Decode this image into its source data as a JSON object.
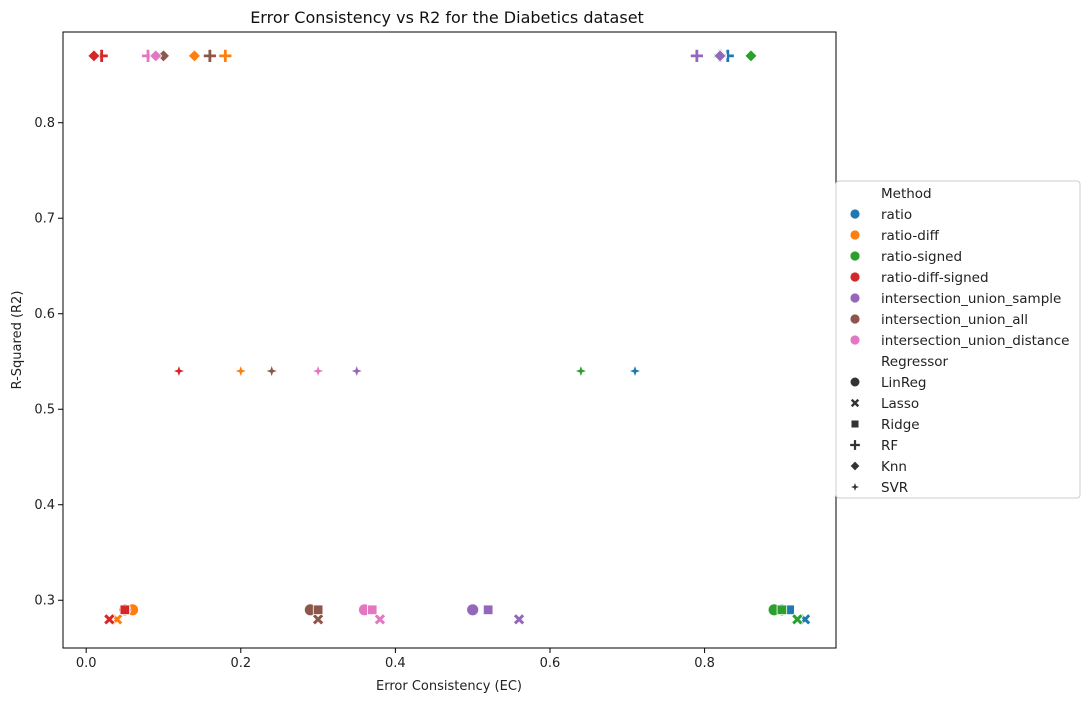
{
  "chart_data": {
    "type": "scatter",
    "title": "Error Consistency vs R2 for the Diabetics dataset",
    "xlabel": "Error Consistency (EC)",
    "ylabel": "R-Squared (R2)",
    "xlim": [
      -0.03,
      0.97
    ],
    "ylim": [
      0.25,
      0.895
    ],
    "xticks": [
      "0.0",
      "0.2",
      "0.4",
      "0.6",
      "0.8"
    ],
    "yticks": [
      "0.3",
      "0.4",
      "0.5",
      "0.6",
      "0.7",
      "0.8"
    ],
    "legend_placement": "center-right outside",
    "grid": false,
    "legend": {
      "method_title": "Method",
      "methods": [
        {
          "name": "ratio",
          "color": "#1f77b4"
        },
        {
          "name": "ratio-diff",
          "color": "#ff7f0e"
        },
        {
          "name": "ratio-signed",
          "color": "#2ca02c"
        },
        {
          "name": "ratio-diff-signed",
          "color": "#d62728"
        },
        {
          "name": "intersection_union_sample",
          "color": "#9467bd"
        },
        {
          "name": "intersection_union_all",
          "color": "#8c564b"
        },
        {
          "name": "intersection_union_distance",
          "color": "#e377c2"
        }
      ],
      "regressor_title": "Regressor",
      "regressors": [
        {
          "name": "LinReg",
          "marker": "circle"
        },
        {
          "name": "Lasso",
          "marker": "x"
        },
        {
          "name": "Ridge",
          "marker": "square"
        },
        {
          "name": "RF",
          "marker": "plus"
        },
        {
          "name": "Knn",
          "marker": "diamond"
        },
        {
          "name": "SVR",
          "marker": "star4"
        }
      ]
    },
    "points": [
      {
        "method": "ratio",
        "regressor": "LinReg",
        "x": 0.9,
        "y": 0.29
      },
      {
        "method": "ratio",
        "regressor": "Lasso",
        "x": 0.93,
        "y": 0.28
      },
      {
        "method": "ratio",
        "regressor": "Ridge",
        "x": 0.91,
        "y": 0.29
      },
      {
        "method": "ratio",
        "regressor": "RF",
        "x": 0.83,
        "y": 0.87
      },
      {
        "method": "ratio",
        "regressor": "Knn",
        "x": 0.82,
        "y": 0.87
      },
      {
        "method": "ratio",
        "regressor": "SVR",
        "x": 0.71,
        "y": 0.54
      },
      {
        "method": "ratio-diff",
        "regressor": "LinReg",
        "x": 0.06,
        "y": 0.29
      },
      {
        "method": "ratio-diff",
        "regressor": "Lasso",
        "x": 0.04,
        "y": 0.28
      },
      {
        "method": "ratio-diff",
        "regressor": "Ridge",
        "x": 0.05,
        "y": 0.29
      },
      {
        "method": "ratio-diff",
        "regressor": "RF",
        "x": 0.18,
        "y": 0.87
      },
      {
        "method": "ratio-diff",
        "regressor": "Knn",
        "x": 0.14,
        "y": 0.87
      },
      {
        "method": "ratio-diff",
        "regressor": "SVR",
        "x": 0.2,
        "y": 0.54
      },
      {
        "method": "ratio-signed",
        "regressor": "LinReg",
        "x": 0.89,
        "y": 0.29
      },
      {
        "method": "ratio-signed",
        "regressor": "Lasso",
        "x": 0.92,
        "y": 0.28
      },
      {
        "method": "ratio-signed",
        "regressor": "Ridge",
        "x": 0.9,
        "y": 0.29
      },
      {
        "method": "ratio-signed",
        "regressor": "RF",
        "x": 0.82,
        "y": 0.87
      },
      {
        "method": "ratio-signed",
        "regressor": "Knn",
        "x": 0.86,
        "y": 0.87
      },
      {
        "method": "ratio-signed",
        "regressor": "SVR",
        "x": 0.64,
        "y": 0.54
      },
      {
        "method": "ratio-diff-signed",
        "regressor": "LinReg",
        "x": 0.05,
        "y": 0.29
      },
      {
        "method": "ratio-diff-signed",
        "regressor": "Lasso",
        "x": 0.03,
        "y": 0.28
      },
      {
        "method": "ratio-diff-signed",
        "regressor": "Ridge",
        "x": 0.05,
        "y": 0.29
      },
      {
        "method": "ratio-diff-signed",
        "regressor": "RF",
        "x": 0.02,
        "y": 0.87
      },
      {
        "method": "ratio-diff-signed",
        "regressor": "Knn",
        "x": 0.01,
        "y": 0.87
      },
      {
        "method": "ratio-diff-signed",
        "regressor": "SVR",
        "x": 0.12,
        "y": 0.54
      },
      {
        "method": "intersection_union_sample",
        "regressor": "LinReg",
        "x": 0.5,
        "y": 0.29
      },
      {
        "method": "intersection_union_sample",
        "regressor": "Lasso",
        "x": 0.56,
        "y": 0.28
      },
      {
        "method": "intersection_union_sample",
        "regressor": "Ridge",
        "x": 0.52,
        "y": 0.29
      },
      {
        "method": "intersection_union_sample",
        "regressor": "RF",
        "x": 0.79,
        "y": 0.87
      },
      {
        "method": "intersection_union_sample",
        "regressor": "Knn",
        "x": 0.82,
        "y": 0.87
      },
      {
        "method": "intersection_union_sample",
        "regressor": "SVR",
        "x": 0.35,
        "y": 0.54
      },
      {
        "method": "intersection_union_all",
        "regressor": "LinReg",
        "x": 0.29,
        "y": 0.29
      },
      {
        "method": "intersection_union_all",
        "regressor": "Lasso",
        "x": 0.3,
        "y": 0.28
      },
      {
        "method": "intersection_union_all",
        "regressor": "Ridge",
        "x": 0.3,
        "y": 0.29
      },
      {
        "method": "intersection_union_all",
        "regressor": "RF",
        "x": 0.16,
        "y": 0.87
      },
      {
        "method": "intersection_union_all",
        "regressor": "Knn",
        "x": 0.1,
        "y": 0.87
      },
      {
        "method": "intersection_union_all",
        "regressor": "SVR",
        "x": 0.24,
        "y": 0.54
      },
      {
        "method": "intersection_union_distance",
        "regressor": "LinReg",
        "x": 0.36,
        "y": 0.29
      },
      {
        "method": "intersection_union_distance",
        "regressor": "Lasso",
        "x": 0.38,
        "y": 0.28
      },
      {
        "method": "intersection_union_distance",
        "regressor": "Ridge",
        "x": 0.37,
        "y": 0.29
      },
      {
        "method": "intersection_union_distance",
        "regressor": "RF",
        "x": 0.08,
        "y": 0.87
      },
      {
        "method": "intersection_union_distance",
        "regressor": "Knn",
        "x": 0.09,
        "y": 0.87
      },
      {
        "method": "intersection_union_distance",
        "regressor": "SVR",
        "x": 0.3,
        "y": 0.54
      }
    ]
  }
}
